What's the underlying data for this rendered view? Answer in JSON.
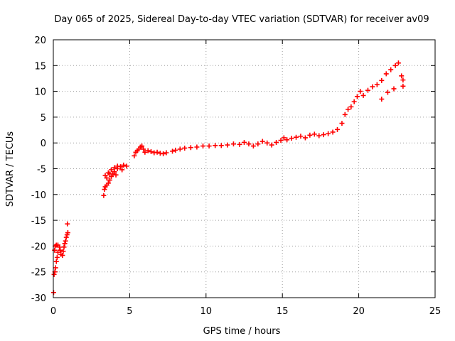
{
  "chart_data": {
    "type": "scatter",
    "title": "Day 065 of 2025, Sidereal Day-to-day VTEC variation (SDTVAR) for receiver av09",
    "xlabel": "GPS time / hours",
    "ylabel": "SDTVAR / TECUs",
    "xlim": [
      0,
      25
    ],
    "ylim": [
      -30,
      20
    ],
    "xticks": [
      0,
      5,
      10,
      15,
      20,
      25
    ],
    "xtick_labels": [
      "0",
      "5",
      "10",
      "15",
      "20",
      "25"
    ],
    "yticks": [
      -30,
      -25,
      -20,
      -15,
      -10,
      -5,
      0,
      5,
      10,
      15,
      20
    ],
    "ytick_labels": [
      "-30",
      "-25",
      "-20",
      "-15",
      "-10",
      "-5",
      "0",
      "5",
      "10",
      "15",
      "20"
    ],
    "grid": true,
    "marker": "plus",
    "color": "#ff0000",
    "series": [
      {
        "name": "SDTVAR",
        "points": [
          [
            0.02,
            -29.0
          ],
          [
            0.05,
            -25.5
          ],
          [
            0.1,
            -25.0
          ],
          [
            0.15,
            -24.2
          ],
          [
            0.2,
            -23.0
          ],
          [
            0.25,
            -22.2
          ],
          [
            0.3,
            -21.2
          ],
          [
            0.08,
            -20.8
          ],
          [
            0.12,
            -20.0
          ],
          [
            0.2,
            -19.8
          ],
          [
            0.3,
            -19.8
          ],
          [
            0.4,
            -20.2
          ],
          [
            0.45,
            -20.8
          ],
          [
            0.5,
            -21.6
          ],
          [
            0.6,
            -21.8
          ],
          [
            0.65,
            -21.0
          ],
          [
            0.7,
            -20.2
          ],
          [
            0.75,
            -19.5
          ],
          [
            0.8,
            -19.0
          ],
          [
            0.85,
            -18.3
          ],
          [
            0.9,
            -17.8
          ],
          [
            0.95,
            -17.4
          ],
          [
            0.92,
            -15.7
          ],
          [
            3.3,
            -10.2
          ],
          [
            3.35,
            -9.0
          ],
          [
            3.4,
            -8.5
          ],
          [
            3.5,
            -8.2
          ],
          [
            3.6,
            -7.8
          ],
          [
            3.7,
            -7.2
          ],
          [
            3.8,
            -6.5
          ],
          [
            3.9,
            -6.0
          ],
          [
            4.0,
            -5.6
          ],
          [
            4.2,
            -5.0
          ],
          [
            4.4,
            -4.6
          ],
          [
            4.6,
            -4.3
          ],
          [
            4.8,
            -4.5
          ],
          [
            3.4,
            -6.3
          ],
          [
            3.6,
            -5.8
          ],
          [
            3.8,
            -5.2
          ],
          [
            4.0,
            -4.8
          ],
          [
            4.2,
            -4.5
          ],
          [
            3.5,
            -6.8
          ],
          [
            3.7,
            -6.0
          ],
          [
            4.5,
            -5.2
          ],
          [
            4.1,
            -6.2
          ],
          [
            5.3,
            -2.5
          ],
          [
            5.4,
            -1.8
          ],
          [
            5.5,
            -1.5
          ],
          [
            5.6,
            -1.2
          ],
          [
            5.7,
            -0.8
          ],
          [
            5.8,
            -0.6
          ],
          [
            5.9,
            -1.2
          ],
          [
            6.0,
            -1.8
          ],
          [
            6.2,
            -1.5
          ],
          [
            6.4,
            -1.7
          ],
          [
            6.6,
            -1.9
          ],
          [
            6.8,
            -1.8
          ],
          [
            7.0,
            -2.0
          ],
          [
            7.2,
            -2.1
          ],
          [
            7.4,
            -1.9
          ],
          [
            7.8,
            -1.6
          ],
          [
            8.0,
            -1.4
          ],
          [
            8.3,
            -1.2
          ],
          [
            8.6,
            -1.0
          ],
          [
            9.0,
            -0.9
          ],
          [
            9.4,
            -0.8
          ],
          [
            9.8,
            -0.6
          ],
          [
            10.2,
            -0.6
          ],
          [
            10.6,
            -0.5
          ],
          [
            11.0,
            -0.5
          ],
          [
            11.4,
            -0.4
          ],
          [
            11.8,
            -0.2
          ],
          [
            12.2,
            -0.3
          ],
          [
            12.5,
            0.1
          ],
          [
            12.8,
            -0.2
          ],
          [
            13.1,
            -0.6
          ],
          [
            13.4,
            -0.2
          ],
          [
            13.7,
            0.3
          ],
          [
            14.0,
            0.0
          ],
          [
            14.3,
            -0.4
          ],
          [
            14.6,
            0.1
          ],
          [
            14.9,
            0.5
          ],
          [
            15.1,
            1.0
          ],
          [
            15.3,
            0.6
          ],
          [
            15.6,
            0.9
          ],
          [
            15.9,
            1.1
          ],
          [
            16.2,
            1.3
          ],
          [
            16.5,
            1.0
          ],
          [
            16.8,
            1.5
          ],
          [
            17.1,
            1.7
          ],
          [
            17.4,
            1.4
          ],
          [
            17.7,
            1.6
          ],
          [
            18.0,
            1.8
          ],
          [
            18.3,
            2.1
          ],
          [
            18.6,
            2.6
          ],
          [
            18.9,
            3.8
          ],
          [
            19.1,
            5.5
          ],
          [
            19.3,
            6.5
          ],
          [
            19.5,
            7.0
          ],
          [
            19.7,
            8.0
          ],
          [
            19.9,
            9.0
          ],
          [
            20.1,
            10.0
          ],
          [
            20.3,
            9.2
          ],
          [
            20.6,
            10.2
          ],
          [
            20.9,
            10.9
          ],
          [
            21.2,
            11.3
          ],
          [
            21.5,
            12.1
          ],
          [
            21.8,
            13.4
          ],
          [
            22.1,
            14.2
          ],
          [
            22.4,
            15.0
          ],
          [
            22.6,
            15.5
          ],
          [
            22.8,
            13.0
          ],
          [
            22.9,
            12.2
          ],
          [
            21.5,
            8.5
          ],
          [
            21.9,
            9.8
          ],
          [
            22.3,
            10.5
          ],
          [
            22.9,
            11.0
          ]
        ]
      }
    ]
  }
}
